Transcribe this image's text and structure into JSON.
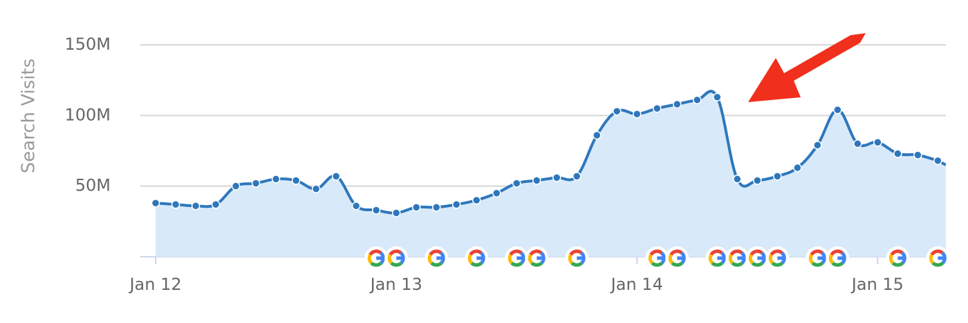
{
  "chart_data": {
    "type": "area",
    "y_axis_title": "Search Visits",
    "series": [
      {
        "name": "Search Visits",
        "color": "#2e77bc",
        "fill": "#d8eaf9",
        "values": [
          38,
          37,
          36,
          37,
          50,
          52,
          55,
          54,
          48,
          57,
          36,
          33,
          31,
          35,
          35,
          37,
          40,
          45,
          52,
          54,
          56,
          57,
          86,
          103,
          101,
          105,
          108,
          111,
          113,
          55,
          54,
          57,
          63,
          79,
          104,
          80,
          81,
          73,
          72,
          68
        ]
      }
    ],
    "xlim": [
      -0.76,
      39.4
    ],
    "xticks": [
      {
        "value": 0,
        "label": "Jan 12"
      },
      {
        "value": 12,
        "label": "Jan 13"
      },
      {
        "value": 24,
        "label": "Jan 14"
      },
      {
        "value": 36,
        "label": "Jan 15"
      }
    ],
    "ylim": [
      0,
      150
    ],
    "yticks": [
      {
        "value": 50,
        "label": "50M"
      },
      {
        "value": 100,
        "label": "100M"
      },
      {
        "value": 150,
        "label": "150M"
      }
    ],
    "grid": true
  }
}
